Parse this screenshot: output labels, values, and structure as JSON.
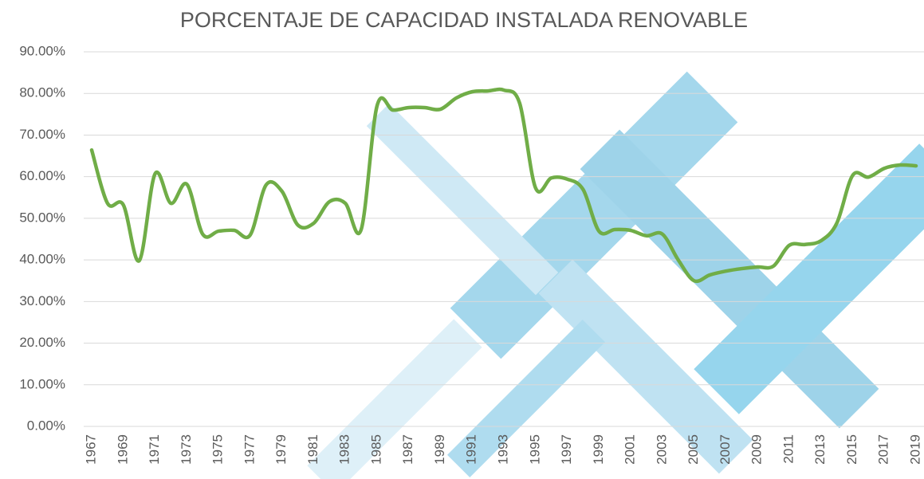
{
  "chart_data": {
    "type": "line",
    "title": "PORCENTAJE DE CAPACIDAD INSTALADA RENOVABLE",
    "categories": [
      "1967",
      null,
      "1969",
      null,
      "1971",
      null,
      "1973",
      null,
      "1975",
      null,
      "1977",
      null,
      "1979",
      null,
      "1981",
      null,
      "1983",
      null,
      "1985",
      null,
      "1987",
      null,
      "1989",
      null,
      "1991",
      null,
      "1993",
      null,
      "1995",
      null,
      "1997",
      null,
      "1999",
      null,
      "2001",
      null,
      "2003",
      null,
      "2005",
      null,
      "2007",
      null,
      "2009",
      null,
      "2011",
      null,
      "2013",
      null,
      "2015",
      null,
      "2017",
      null,
      "2019"
    ],
    "values": [
      66.4,
      53.6,
      53.2,
      39.8,
      60.7,
      53.6,
      58.2,
      46.2,
      46.9,
      47.1,
      46.0,
      58.0,
      56.5,
      48.4,
      48.8,
      54.0,
      53.6,
      47.3,
      77.0,
      76.0,
      76.6,
      76.6,
      76.2,
      78.9,
      80.4,
      80.6,
      80.8,
      77.6,
      57.3,
      59.7,
      59.4,
      56.9,
      46.9,
      47.3,
      47.1,
      45.8,
      46.2,
      40.0,
      35.0,
      36.4,
      37.3,
      37.9,
      38.3,
      38.5,
      43.5,
      43.7,
      44.6,
      48.8,
      60.3,
      59.9,
      62.0,
      62.8,
      62.6
    ],
    "color": "#70ad47",
    "smooth": true,
    "ylim": [
      0,
      90
    ],
    "yticks": [
      {
        "value": 0,
        "label": "0.00%"
      },
      {
        "value": 10,
        "label": "10.00%"
      },
      {
        "value": 20,
        "label": "20.00%"
      },
      {
        "value": 30,
        "label": "30.00%"
      },
      {
        "value": 40,
        "label": "40.00%"
      },
      {
        "value": 50,
        "label": "50.00%"
      },
      {
        "value": 60,
        "label": "60.00%"
      },
      {
        "value": 70,
        "label": "70.00%"
      },
      {
        "value": 80,
        "label": "80.00%"
      },
      {
        "value": 90,
        "label": "90.00%"
      }
    ],
    "grid": true
  }
}
